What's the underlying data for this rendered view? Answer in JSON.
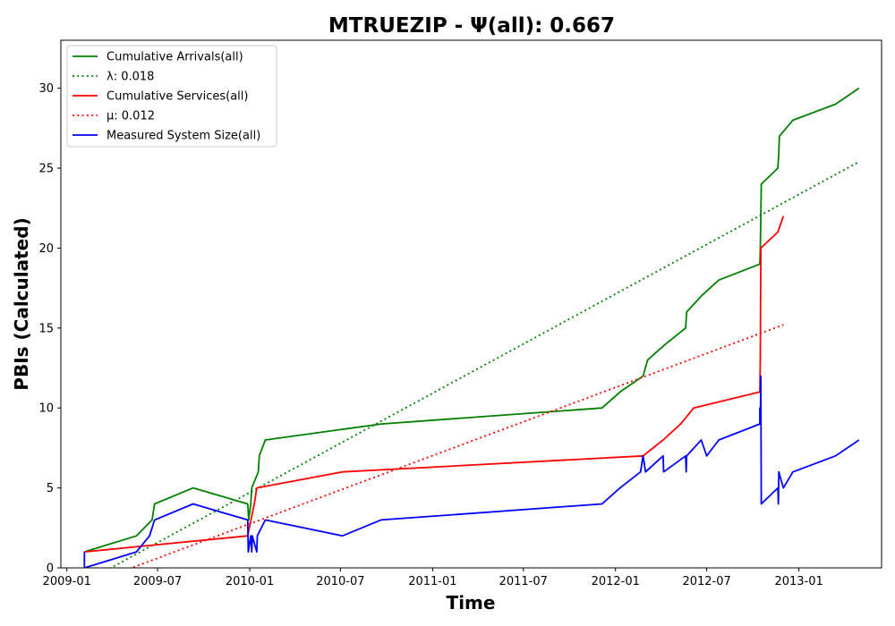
{
  "chart_data": {
    "type": "line",
    "title": "MTRUEZIP -  Ψ(all): 0.667",
    "xlabel": "Time",
    "ylabel": "PBIs (Calculated)",
    "xlim": [
      "2008-12-20",
      "2013-06-15"
    ],
    "ylim": [
      0,
      33
    ],
    "x_ticks": [
      "2009-01",
      "2009-07",
      "2010-01",
      "2010-07",
      "2011-01",
      "2011-07",
      "2012-01",
      "2012-07",
      "2013-01"
    ],
    "y_ticks": [
      0,
      5,
      10,
      15,
      20,
      25,
      30
    ],
    "grid": false,
    "legend_position": "top-left",
    "series": [
      {
        "name": "Cumulative Arrivals(all)",
        "color": "#008000",
        "style": "solid",
        "points": [
          [
            "2009-02-05",
            1
          ],
          [
            "2009-05-20",
            2
          ],
          [
            "2009-06-20",
            3
          ],
          [
            "2009-06-25",
            4
          ],
          [
            "2009-09-10",
            5
          ],
          [
            "2009-12-28",
            4
          ],
          [
            "2009-12-30",
            3
          ],
          [
            "2010-01-03",
            4
          ],
          [
            "2010-01-05",
            5
          ],
          [
            "2010-01-18",
            6
          ],
          [
            "2010-01-20",
            7
          ],
          [
            "2010-02-01",
            8
          ],
          [
            "2010-09-20",
            9
          ],
          [
            "2011-12-05",
            10
          ],
          [
            "2012-01-10",
            11
          ],
          [
            "2012-02-25",
            12
          ],
          [
            "2012-03-05",
            13
          ],
          [
            "2012-04-10",
            14
          ],
          [
            "2012-05-20",
            15
          ],
          [
            "2012-05-22",
            16
          ],
          [
            "2012-06-20",
            17
          ],
          [
            "2012-07-25",
            18
          ],
          [
            "2012-10-15",
            19
          ],
          [
            "2012-10-16",
            20
          ],
          [
            "2012-10-17",
            22
          ],
          [
            "2012-10-18",
            24
          ],
          [
            "2012-11-20",
            25
          ],
          [
            "2012-11-22",
            26
          ],
          [
            "2012-11-23",
            27
          ],
          [
            "2012-12-20",
            28
          ],
          [
            "2013-03-15",
            29
          ],
          [
            "2013-05-01",
            30
          ]
        ]
      },
      {
        "name": "λ: 0.018",
        "color": "#008000",
        "style": "dotted",
        "points": [
          [
            "2009-02-05",
            -0.9
          ],
          [
            "2013-05-01",
            25.4
          ]
        ]
      },
      {
        "name": "Cumulative Services(all)",
        "color": "#ff0000",
        "style": "solid",
        "points": [
          [
            "2009-02-05",
            1
          ],
          [
            "2009-12-28",
            2
          ],
          [
            "2010-01-10",
            4
          ],
          [
            "2010-01-15",
            5
          ],
          [
            "2010-07-05",
            6
          ],
          [
            "2012-02-25",
            7
          ],
          [
            "2012-04-05",
            8
          ],
          [
            "2012-05-10",
            9
          ],
          [
            "2012-06-05",
            10
          ],
          [
            "2012-10-15",
            11
          ],
          [
            "2012-10-16",
            13
          ],
          [
            "2012-10-17",
            20
          ],
          [
            "2012-11-20",
            21
          ],
          [
            "2012-12-01",
            22
          ]
        ]
      },
      {
        "name": "μ: 0.012",
        "color": "#ff0000",
        "style": "dotted",
        "points": [
          [
            "2009-02-05",
            -1.1
          ],
          [
            "2012-12-01",
            15.2
          ]
        ]
      },
      {
        "name": "Measured System Size(all)",
        "color": "#0000ff",
        "style": "solid",
        "points": [
          [
            "2009-02-05",
            1
          ],
          [
            "2009-02-05",
            0
          ],
          [
            "2009-05-20",
            1
          ],
          [
            "2009-06-15",
            2
          ],
          [
            "2009-06-25",
            3
          ],
          [
            "2009-09-10",
            4
          ],
          [
            "2009-12-28",
            3
          ],
          [
            "2009-12-29",
            1
          ],
          [
            "2010-01-03",
            2
          ],
          [
            "2010-01-05",
            1
          ],
          [
            "2010-01-06",
            2
          ],
          [
            "2010-01-15",
            1
          ],
          [
            "2010-01-16",
            2
          ],
          [
            "2010-02-01",
            3
          ],
          [
            "2010-07-05",
            2
          ],
          [
            "2010-09-20",
            3
          ],
          [
            "2011-12-05",
            4
          ],
          [
            "2012-01-10",
            5
          ],
          [
            "2012-02-20",
            6
          ],
          [
            "2012-02-25",
            7
          ],
          [
            "2012-03-01",
            6
          ],
          [
            "2012-04-05",
            7
          ],
          [
            "2012-04-06",
            6
          ],
          [
            "2012-05-20",
            7
          ],
          [
            "2012-05-21",
            6
          ],
          [
            "2012-05-22",
            7
          ],
          [
            "2012-06-20",
            8
          ],
          [
            "2012-07-01",
            7
          ],
          [
            "2012-07-25",
            8
          ],
          [
            "2012-10-15",
            9
          ],
          [
            "2012-10-15",
            10
          ],
          [
            "2012-10-16",
            9
          ],
          [
            "2012-10-17",
            12
          ],
          [
            "2012-10-18",
            4
          ],
          [
            "2012-11-20",
            5
          ],
          [
            "2012-11-21",
            4
          ],
          [
            "2012-11-22",
            6
          ],
          [
            "2012-12-01",
            5
          ],
          [
            "2012-12-20",
            6
          ],
          [
            "2013-03-15",
            7
          ],
          [
            "2013-05-01",
            8
          ]
        ]
      }
    ]
  }
}
